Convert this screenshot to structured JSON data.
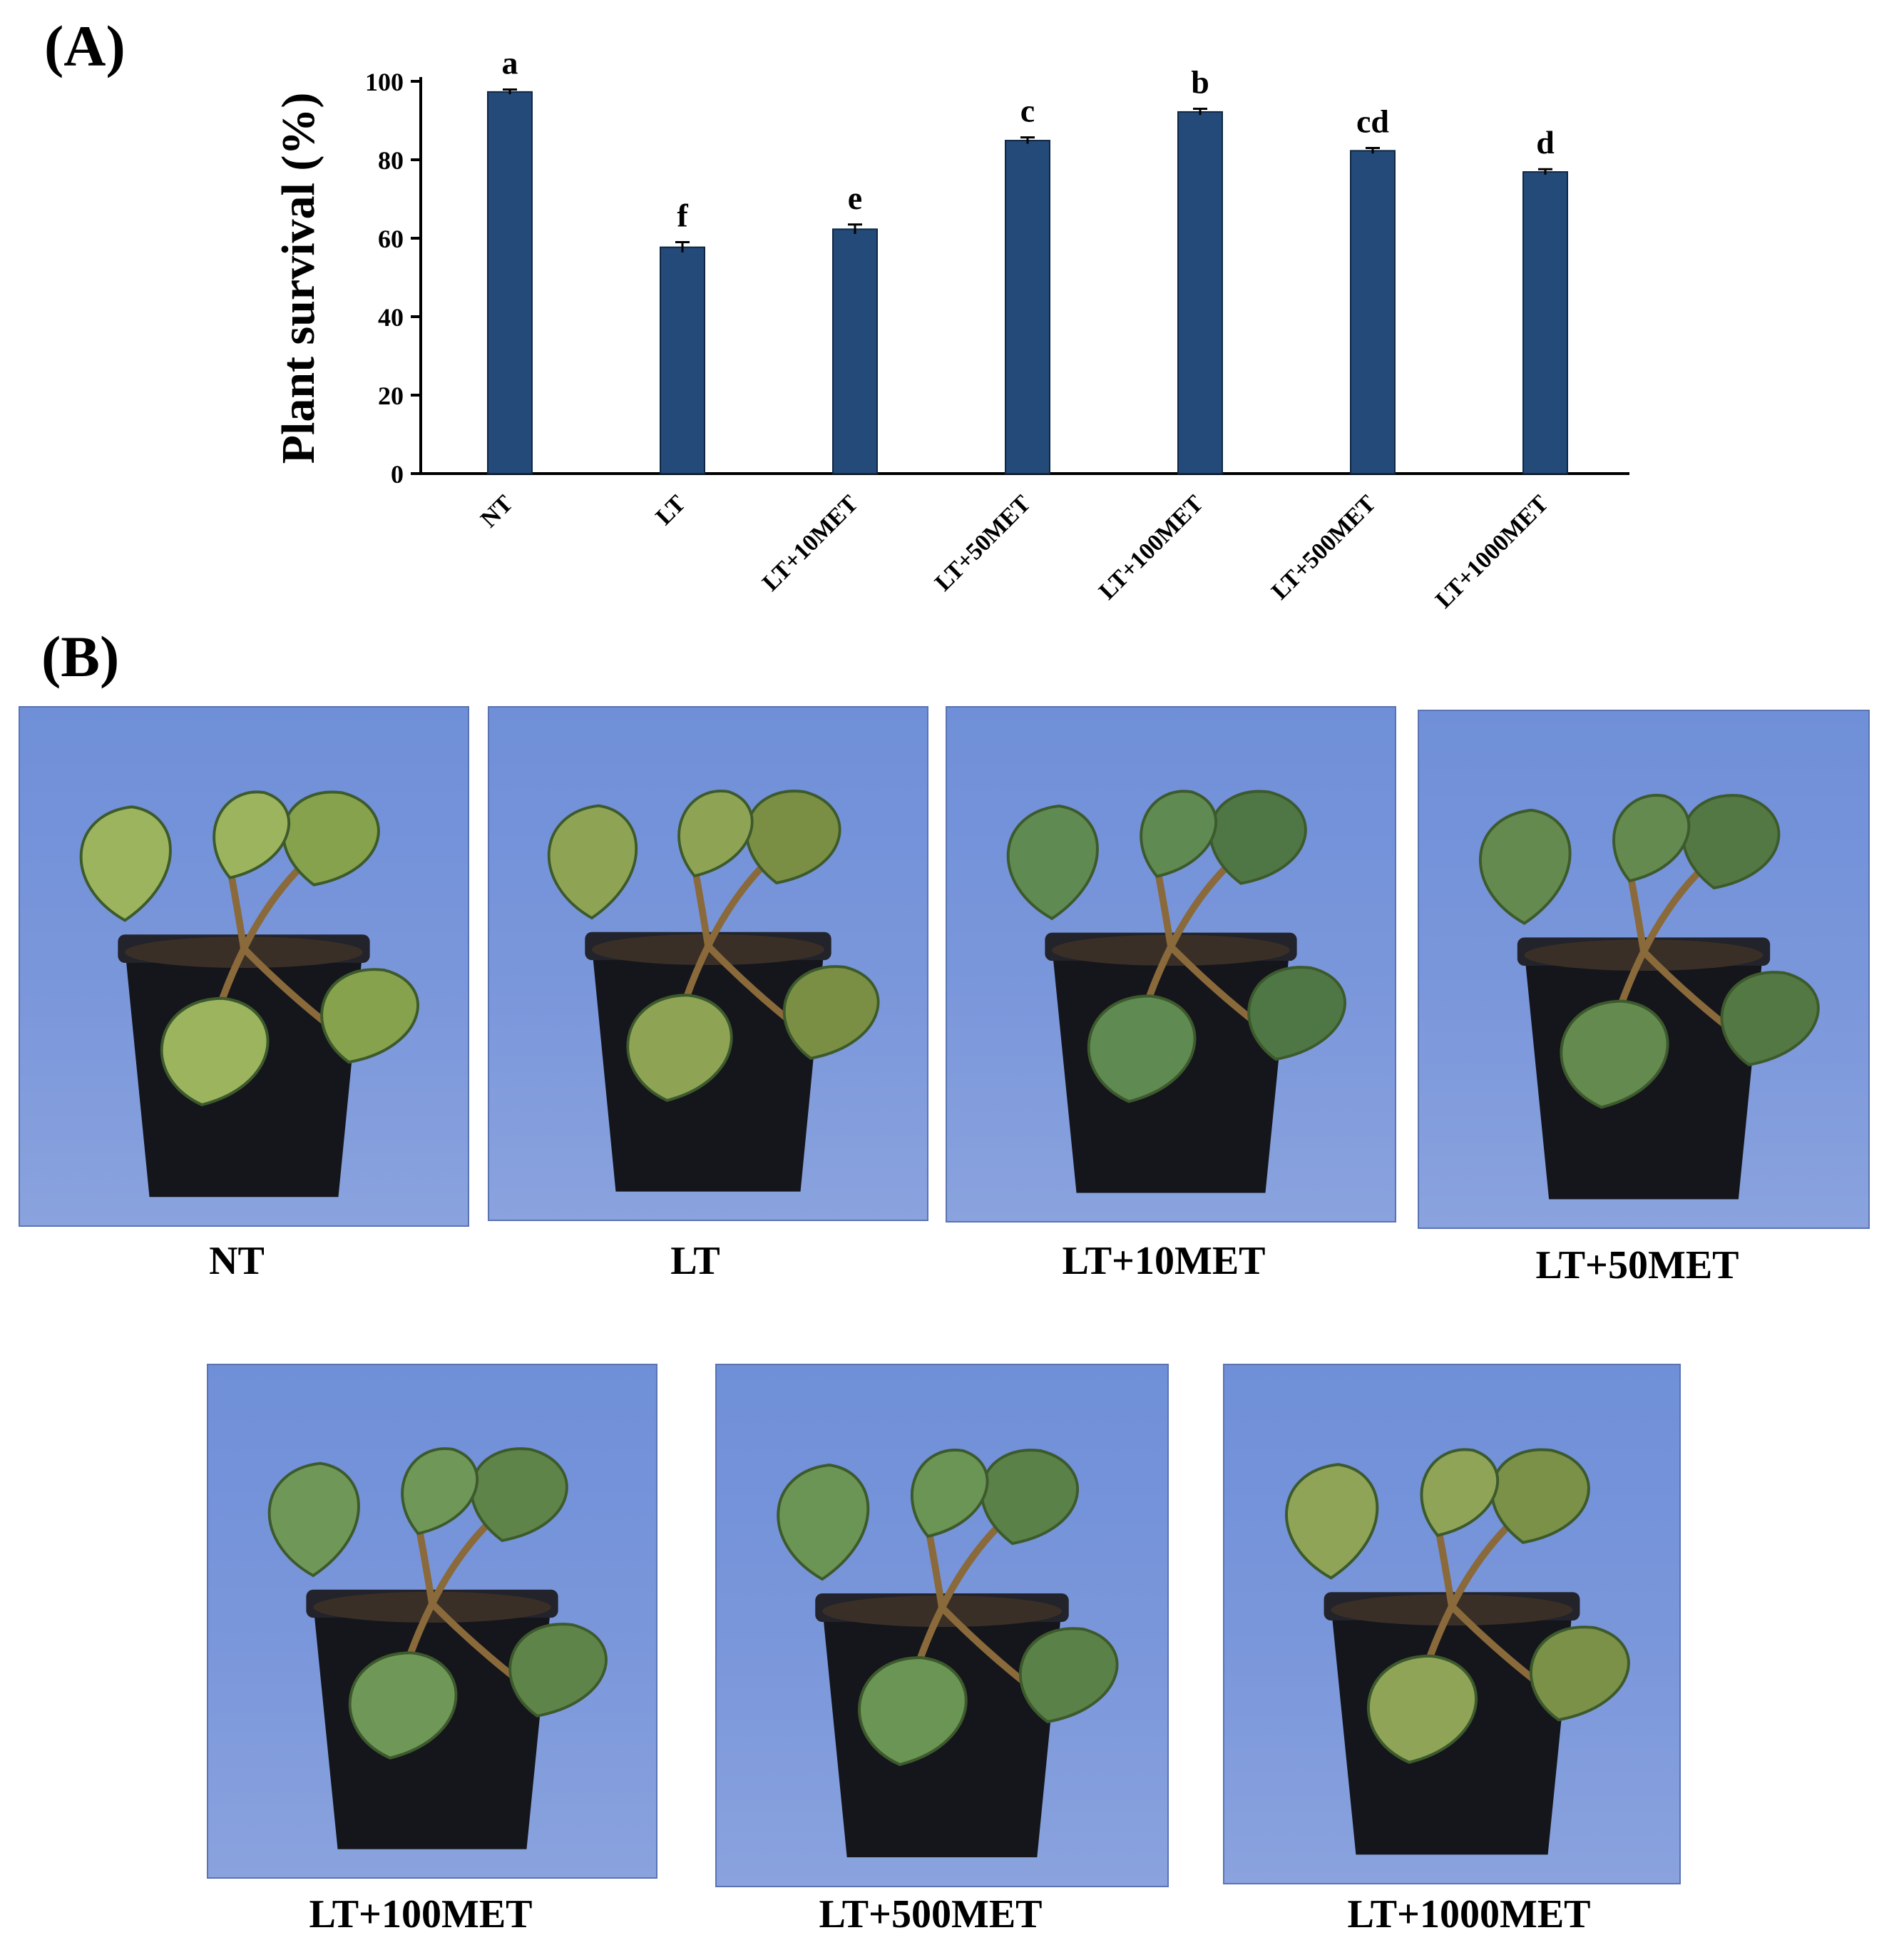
{
  "panels": {
    "a_label": "(A)",
    "b_label": "(B)"
  },
  "chart_data": {
    "type": "bar",
    "title": "",
    "xlabel": "",
    "ylabel": "Plant survival (%)",
    "ylim": [
      0,
      100
    ],
    "yticks": [
      0,
      20,
      40,
      60,
      80,
      100
    ],
    "categories": [
      "NT",
      "LT",
      "LT+10MET",
      "LT+50MET",
      "LT+100MET",
      "LT+500MET",
      "LT+1000MET"
    ],
    "values": [
      97.3,
      57.7,
      62.3,
      84.9,
      92.2,
      82.3,
      76.9
    ],
    "errors": [
      0.6,
      1.3,
      1.2,
      0.8,
      0.8,
      0.7,
      0.7
    ],
    "significance_letters": [
      "a",
      "f",
      "e",
      "c",
      "b",
      "cd",
      "d"
    ],
    "bar_color": "#234a78",
    "grid": false,
    "legend": "none"
  },
  "photos": [
    {
      "caption": "NT"
    },
    {
      "caption": "LT"
    },
    {
      "caption": "LT+10MET"
    },
    {
      "caption": "LT+50MET"
    },
    {
      "caption": "LT+100MET"
    },
    {
      "caption": "LT+500MET"
    },
    {
      "caption": "LT+1000MET"
    }
  ]
}
